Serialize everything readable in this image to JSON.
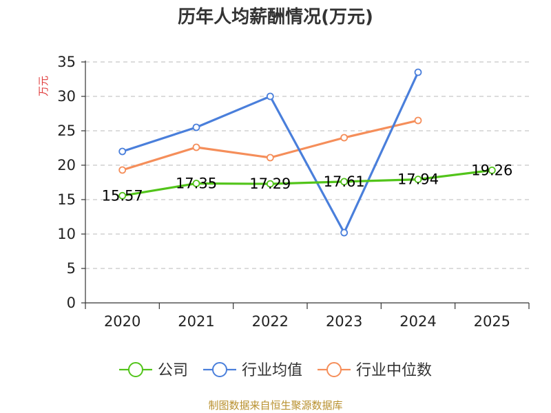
{
  "chart_data": {
    "type": "line",
    "title": "历年人均薪酬情况(万元)",
    "ylabel": "万元",
    "xlabel": "",
    "ylim": [
      0,
      35
    ],
    "y_ticks": [
      0,
      5,
      10,
      15,
      20,
      25,
      30,
      35
    ],
    "grid": true,
    "legend_position": "bottom",
    "categories": [
      "2020",
      "2021",
      "2022",
      "2023",
      "2024",
      "2025"
    ],
    "series": [
      {
        "name": "公司",
        "color": "#52c41a",
        "values": [
          15.57,
          17.35,
          17.29,
          17.61,
          17.94,
          19.26
        ],
        "labels": [
          "15.57",
          "17.35",
          "17.29",
          "17.61",
          "17.94",
          "19.26"
        ]
      },
      {
        "name": "行业均值",
        "color": "#4a7fdb",
        "values": [
          22.0,
          25.5,
          30.0,
          10.2,
          33.5,
          null
        ]
      },
      {
        "name": "行业中位数",
        "color": "#f58e5a",
        "values": [
          19.3,
          22.6,
          21.1,
          24.0,
          26.5,
          null
        ]
      }
    ]
  },
  "source_text": "制图数据来自恒生聚源数据库"
}
